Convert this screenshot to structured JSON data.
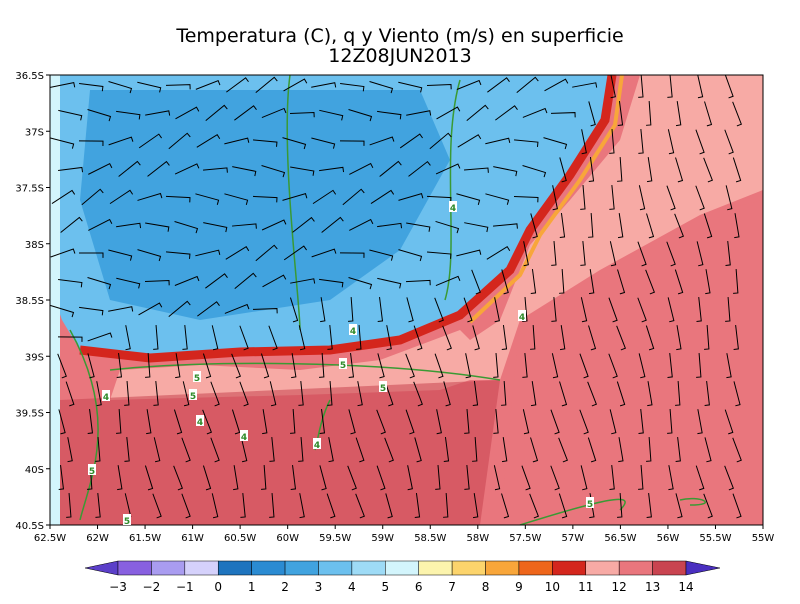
{
  "title": "Temperatura (C), q y Viento (m/s) en superficie",
  "subtitle": "12Z08JUN2013",
  "map": {
    "xlim": [
      -62.5,
      -55
    ],
    "ylim": [
      -40.5,
      -36.5
    ],
    "xticks": [
      {
        "value": -62.5,
        "label": "62.5W"
      },
      {
        "value": -62,
        "label": "62W"
      },
      {
        "value": -61.5,
        "label": "61.5W"
      },
      {
        "value": -61,
        "label": "61W"
      },
      {
        "value": -60.5,
        "label": "60.5W"
      },
      {
        "value": -60,
        "label": "60W"
      },
      {
        "value": -59.5,
        "label": "59.5W"
      },
      {
        "value": -59,
        "label": "59W"
      },
      {
        "value": -58.5,
        "label": "58.5W"
      },
      {
        "value": -58,
        "label": "58W"
      },
      {
        "value": -57.5,
        "label": "57.5W"
      },
      {
        "value": -57,
        "label": "57W"
      },
      {
        "value": -56.5,
        "label": "56.5W"
      },
      {
        "value": -56,
        "label": "56W"
      },
      {
        "value": -55.5,
        "label": "55.5W"
      },
      {
        "value": -55,
        "label": "55W"
      }
    ],
    "yticks": [
      {
        "value": -36.5,
        "label": "36.5S"
      },
      {
        "value": -37,
        "label": "37S"
      },
      {
        "value": -37.5,
        "label": "37.5S"
      },
      {
        "value": -38,
        "label": "38S"
      },
      {
        "value": -38.5,
        "label": "38.5S"
      },
      {
        "value": -39,
        "label": "39S"
      },
      {
        "value": -39.5,
        "label": "39.5S"
      },
      {
        "value": -40,
        "label": "40S"
      },
      {
        "value": -40.5,
        "label": "40.5S"
      }
    ]
  },
  "colorbar": {
    "levels": [
      {
        "value": -3,
        "label": "−3"
      },
      {
        "value": -2,
        "label": "−2"
      },
      {
        "value": -1,
        "label": "−1"
      },
      0,
      1,
      2,
      3,
      4,
      5,
      6,
      7,
      8,
      9,
      10,
      11,
      12,
      13,
      14
    ],
    "colors": [
      "#5b3fc9",
      "#8860e0",
      "#a99cf0",
      "#d5d1fb",
      "#1e74be",
      "#2b8bd2",
      "#41a3df",
      "#6cc0ee",
      "#9edbf6",
      "#d3f5fc",
      "#fcf4ad",
      "#fcd46c",
      "#f8a63a",
      "#ee661b",
      "#d4261d",
      "#f7aaa5",
      "#e9767d",
      "#c94450",
      "#4a2fc0"
    ]
  },
  "contour_labels": [
    "4",
    "4",
    "4",
    "5",
    "5",
    "5",
    "4",
    "5",
    "4",
    "4",
    "4",
    "5",
    "5",
    "5"
  ]
}
